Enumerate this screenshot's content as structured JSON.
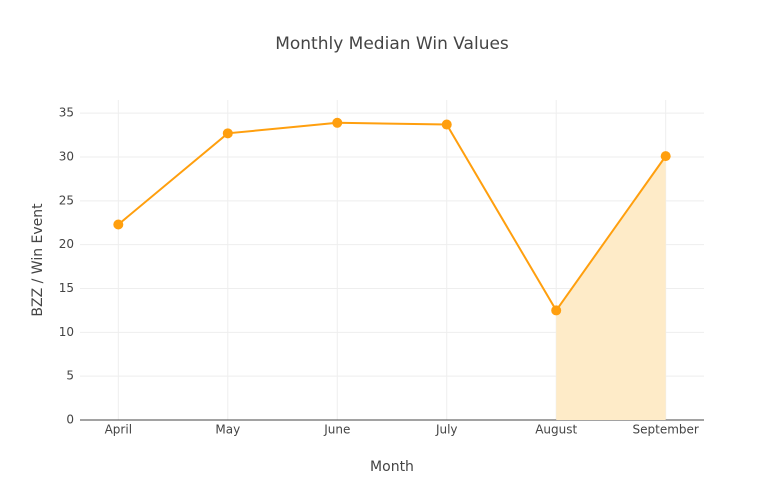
{
  "chart_data": {
    "type": "line",
    "title": "Monthly Median Win Values",
    "x_label": "Month",
    "y_label": "BZZ / Win Event",
    "categories": [
      "April",
      "May",
      "June",
      "July",
      "August",
      "September"
    ],
    "values": [
      22.3,
      32.7,
      33.9,
      33.7,
      12.5,
      30.1
    ],
    "color": "#ff9f0e",
    "shade": {
      "from": "August",
      "to": "September",
      "color": "#feebc8"
    },
    "ylim": [
      0,
      36.5
    ],
    "yticks": [
      0,
      5,
      10,
      15,
      20,
      25,
      30,
      35
    ],
    "grid": true
  }
}
